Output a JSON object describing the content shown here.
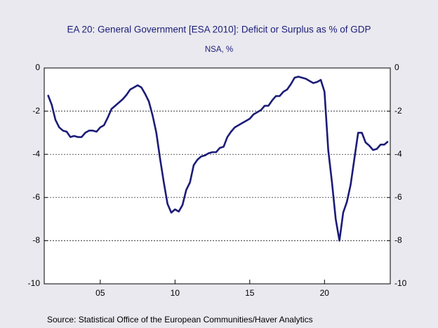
{
  "chart_data": {
    "type": "line",
    "title": "EA 20: General Government [ESA 2010]: Deficit or Surplus as % of GDP",
    "subtitle": "NSA, %",
    "source": "Source:  Statistical Office of the European Communities/Haver Analytics",
    "x": [
      2001.5,
      2001.75,
      2002,
      2002.25,
      2002.5,
      2002.75,
      2003,
      2003.25,
      2003.5,
      2003.75,
      2004,
      2004.25,
      2004.5,
      2004.75,
      2005,
      2005.25,
      2005.5,
      2005.75,
      2006,
      2006.25,
      2006.5,
      2006.75,
      2007,
      2007.25,
      2007.5,
      2007.75,
      2008,
      2008.25,
      2008.5,
      2008.75,
      2009,
      2009.25,
      2009.5,
      2009.75,
      2010,
      2010.25,
      2010.5,
      2010.75,
      2011,
      2011.25,
      2011.5,
      2011.75,
      2012,
      2012.25,
      2012.5,
      2012.75,
      2013,
      2013.25,
      2013.5,
      2013.75,
      2014,
      2014.25,
      2014.5,
      2014.75,
      2015,
      2015.25,
      2015.5,
      2015.75,
      2016,
      2016.25,
      2016.5,
      2016.75,
      2017,
      2017.25,
      2017.5,
      2017.75,
      2018,
      2018.25,
      2018.5,
      2018.75,
      2019,
      2019.25,
      2019.5,
      2019.75,
      2020,
      2020.25,
      2020.5,
      2020.75,
      2021,
      2021.25,
      2021.5,
      2021.75,
      2022,
      2022.25,
      2022.5,
      2022.75,
      2023,
      2023.25,
      2023.5,
      2023.75,
      2024,
      2024.25
    ],
    "series": [
      {
        "color": "#1c1c78",
        "values": [
          -1.25,
          -1.7,
          -2.4,
          -2.75,
          -2.9,
          -2.95,
          -3.2,
          -3.15,
          -3.2,
          -3.2,
          -3.0,
          -2.9,
          -2.9,
          -2.95,
          -2.75,
          -2.65,
          -2.3,
          -1.9,
          -1.75,
          -1.6,
          -1.45,
          -1.25,
          -1.0,
          -0.9,
          -0.8,
          -0.9,
          -1.2,
          -1.55,
          -2.2,
          -3.0,
          -4.2,
          -5.3,
          -6.3,
          -6.7,
          -6.55,
          -6.65,
          -6.35,
          -5.65,
          -5.3,
          -4.5,
          -4.25,
          -4.1,
          -4.05,
          -3.95,
          -3.9,
          -3.9,
          -3.7,
          -3.65,
          -3.2,
          -2.95,
          -2.75,
          -2.65,
          -2.55,
          -2.45,
          -2.35,
          -2.15,
          -2.05,
          -1.95,
          -1.75,
          -1.75,
          -1.5,
          -1.3,
          -1.3,
          -1.1,
          -1.0,
          -0.75,
          -0.45,
          -0.4,
          -0.45,
          -0.5,
          -0.6,
          -0.7,
          -0.65,
          -0.55,
          -1.1,
          -3.8,
          -5.3,
          -7.0,
          -8.0,
          -6.7,
          -6.2,
          -5.4,
          -4.2,
          -3.0,
          -3.0,
          -3.45,
          -3.6,
          -3.8,
          -3.75,
          -3.55,
          -3.55,
          -3.4
        ]
      }
    ],
    "xlim": [
      2001.25,
      2024.4
    ],
    "xticks": [
      {
        "value": 2005,
        "label": "05"
      },
      {
        "value": 2010,
        "label": "10"
      },
      {
        "value": 2015,
        "label": "15"
      },
      {
        "value": 2020,
        "label": "20"
      }
    ],
    "ylim": [
      -10,
      0
    ],
    "yticks": [
      0,
      -2,
      -4,
      -6,
      -8,
      -10
    ],
    "y2lim": [
      -10,
      0
    ],
    "y2ticks": [
      0,
      -2,
      -4,
      -6,
      -8,
      -10
    ],
    "grid": true
  }
}
